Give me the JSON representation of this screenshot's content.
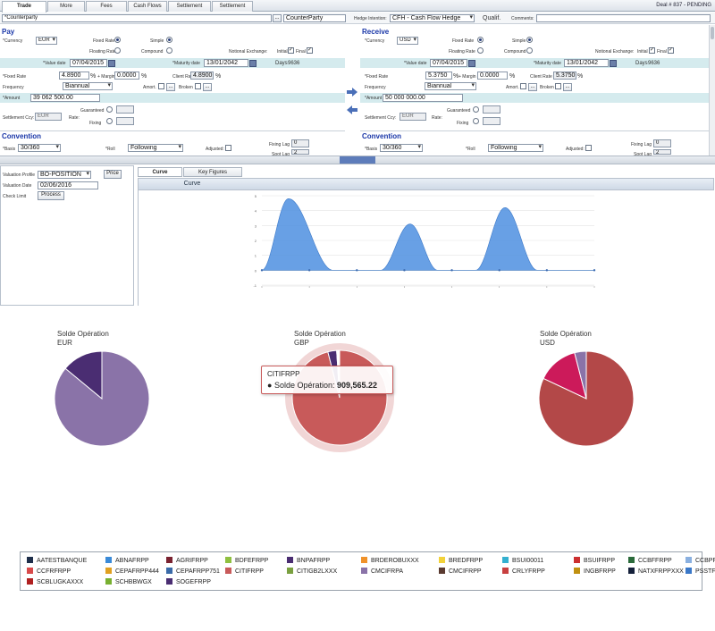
{
  "tabs": [
    "Trade",
    "More",
    "Fees",
    "Cash Flows",
    "Settlement Flows",
    "Settlement Rules"
  ],
  "deal_status": "Deal # 837 - PENDING",
  "top": {
    "counterparty_label": "*Counterparty",
    "counterparty_value": "CounterParty",
    "ellipsis": "...",
    "hedge_label": "Hedge Intention:",
    "hedge_value": "CFH - Cash Flow Hedge",
    "qualif_label": "Qualif.",
    "comments_label": "Comments:"
  },
  "pay": {
    "title": "Pay",
    "currency_label": "*Currency",
    "currency": "EUR",
    "fixed_rate_label": "Fixed Rate",
    "floating_rate_label": "Floating Rate",
    "simple_label": "Simple",
    "compound_label": "Compound",
    "notional_label": "Notional Exchange:",
    "initial_label": "Initial",
    "final_label": "Final",
    "value_date_label": "*Value date",
    "value_date": "07/04/2015",
    "maturity_label": "*Maturity date",
    "maturity": "13/01/2042",
    "days_label": "Days",
    "days": "9636",
    "fixed_rate_row_label": "*Fixed Rate",
    "fixed_rate": "4.8900",
    "pct": "%",
    "plus_margin": "+ Margin",
    "margin": "0.0000",
    "client_rate_label": "Client Rate",
    "client_rate": "4.8900",
    "frequency_label": "Frequency",
    "frequency": "Biannual",
    "amort_label": "Amort.",
    "broken_label": "Broken",
    "amount_label": "*Amount",
    "amount": "39 062 500.00",
    "settlement_label": "Settlement Ccy:",
    "settlement": "EUR",
    "guaranteed_label": "Guaranteed",
    "rate_label": "Rate:",
    "fixing_label": "Fixing",
    "convention": "Convention",
    "basis_label": "*Basis",
    "basis": "30/360",
    "roll_label": "*Roll",
    "roll": "Following",
    "adjusted_label": "Adjusted:",
    "fixing_lag_label": "Fixing Lag",
    "fixing_lag": "0",
    "spot_lag_label": "Spot Lag",
    "spot_lag": "2"
  },
  "receive": {
    "title": "Receive",
    "currency_label": "*Currency",
    "currency": "USD",
    "fixed_rate_label": "Fixed Rate",
    "floating_rate_label": "Floating Rate",
    "simple_label": "Simple",
    "compound_label": "Compound",
    "notional_label": "Notional Exchange:",
    "initial_label": "Initial",
    "final_label": "Final",
    "value_date_label": "*Value date",
    "value_date": "07/04/2015",
    "maturity_label": "*Maturity date",
    "maturity": "13/01/2042",
    "days_label": "Days",
    "days": "9636",
    "fixed_rate_row_label": "*Fixed Rate",
    "fixed_rate": "5.3750",
    "pct": "%",
    "plus_margin": "+ Margin",
    "margin": "0.0000",
    "client_rate_label": "Client Rate",
    "client_rate": "5.3750",
    "frequency_label": "Frequency",
    "frequency": "Biannual",
    "amort_label": "Amort.",
    "broken_label": "Broken",
    "amount_label": "*Amount",
    "amount": "50 000 000.00",
    "settlement_label": "Settlement Ccy:",
    "settlement": "EUR",
    "guaranteed_label": "Guaranteed",
    "rate_label": "Rate:",
    "fixing_label": "Fixing",
    "convention": "Convention",
    "basis_label": "*Basis",
    "basis": "30/360",
    "roll_label": "*Roll",
    "roll": "Following",
    "adjusted_label": "Adjusted:",
    "fixing_lag_label": "Fixing Lag",
    "fixing_lag": "0",
    "spot_lag_label": "Spot Lag",
    "spot_lag": "2"
  },
  "valuation": {
    "profile_label": "Valuation Profile",
    "profile": "BO-POSITION",
    "price_button": "Price",
    "date_label": "Valuation Date",
    "date": "02/06/2016",
    "check_label": "Check Limit",
    "process_button": "Process"
  },
  "chart_tabs": [
    "Curve",
    "Key Figures"
  ],
  "chart_header": "Curve",
  "chart_data": [
    {
      "type": "area",
      "y_ticks": [
        "5",
        "4",
        "3",
        "2",
        "1",
        "0",
        "-1"
      ],
      "ylim": [
        -1,
        5
      ],
      "x_ticks_count": 8,
      "peaks": [
        {
          "center": 0.28,
          "value": 4.8
        },
        {
          "center": 1.56,
          "value": 3.1
        },
        {
          "center": 2.56,
          "value": 4.2
        }
      ],
      "x": [
        0,
        0.5,
        1,
        1.5,
        2,
        2.5,
        3,
        3.5
      ],
      "color": "#4d8fe0"
    },
    {
      "type": "pie",
      "title": "Solde Opération",
      "subtitle": "EUR",
      "slices": [
        {
          "name": "CMCIFRPA",
          "value": 86,
          "color": "#8a73a8"
        },
        {
          "name": "NATXFRPPXXX",
          "value": 14,
          "color": "#4a2d72"
        }
      ]
    },
    {
      "type": "pie",
      "title": "Solde Opération",
      "subtitle": "GBP",
      "slices": [
        {
          "name": "CITIFRPP",
          "value": 96,
          "color": "#c85a5a"
        },
        {
          "name": "BNPAFRPP",
          "value": 3,
          "color": "#4a2d72"
        },
        {
          "name": "ABNAFRPP",
          "value": 1,
          "color": "#ffffff"
        }
      ],
      "tooltip": {
        "name": "CITIFRPP",
        "label": "Solde Opération:",
        "value": "909,565.22"
      }
    },
    {
      "type": "pie",
      "title": "Solde Opération",
      "subtitle": "USD",
      "slices": [
        {
          "name": "CRLYFRPP",
          "value": 82,
          "color": "#b34848"
        },
        {
          "name": "BSUIFRPP",
          "value": 14,
          "color": "#cc1a5a"
        },
        {
          "name": "CMCIFRPA",
          "value": 4,
          "color": "#8a73a8"
        }
      ]
    }
  ],
  "legend": [
    {
      "name": "AATESTBANQUE",
      "color": "#1e2e4a"
    },
    {
      "name": "ABNAFRPP",
      "color": "#3a8ad8"
    },
    {
      "name": "AGRIFRPP",
      "color": "#7a2230"
    },
    {
      "name": "BDFEFRPP",
      "color": "#8fc040"
    },
    {
      "name": "BNPAFRPP",
      "color": "#4a2d72"
    },
    {
      "name": "BRDEROBUXXX",
      "color": "#f0922a"
    },
    {
      "name": "BREDFRPP",
      "color": "#f2d23a"
    },
    {
      "name": "BSUI00011",
      "color": "#34b0d0"
    },
    {
      "name": "BSUIFRPP",
      "color": "#cc3030"
    },
    {
      "name": "CCBFFRPP",
      "color": "#2a6a3a"
    },
    {
      "name": "CCBPFRPPGRE",
      "color": "#8ab0e0"
    },
    {
      "name": "CCFRFRPP",
      "color": "#d84a4a"
    },
    {
      "name": "CEPAFRPP444",
      "color": "#e0a020"
    },
    {
      "name": "CEPAFRPP751",
      "color": "#3a6aa8"
    },
    {
      "name": "CITIFRPP",
      "color": "#c85a5a"
    },
    {
      "name": "CITIGB2LXXX",
      "color": "#7aa040"
    },
    {
      "name": "CMCIFRPA",
      "color": "#8a73a8"
    },
    {
      "name": "CMCIFRPP",
      "color": "#5a3a30"
    },
    {
      "name": "CRLYFRPP",
      "color": "#c84040"
    },
    {
      "name": "INGBFRPP",
      "color": "#c09010"
    },
    {
      "name": "NATXFRPPXXX",
      "color": "#14203a"
    },
    {
      "name": "PSSTFRPP",
      "color": "#3a78c8"
    },
    {
      "name": "SCBLUGKAXXX",
      "color": "#b02020"
    },
    {
      "name": "SCHBBWGX",
      "color": "#78b030"
    },
    {
      "name": "SOGEFRPP",
      "color": "#4a2d72"
    }
  ]
}
